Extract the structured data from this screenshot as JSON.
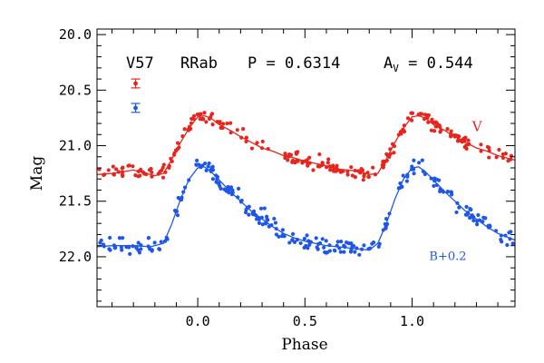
{
  "chart_data": {
    "type": "scatter",
    "xlabel": "Phase",
    "ylabel": "Mag",
    "xlim": [
      -0.47,
      1.48
    ],
    "ylim": [
      22.45,
      19.95
    ],
    "y_inverted": true,
    "xticks": [
      "0.0",
      "0.5",
      "1.0"
    ],
    "yticks": [
      "20.0",
      "20.5",
      "21.0",
      "21.5",
      "22.0"
    ],
    "header": {
      "star": "V57",
      "type": "RRab",
      "period": "P = 0.6314",
      "amp_prefix": "A",
      "amp_sub": "V",
      "amp_value": " = 0.544"
    },
    "series": [
      {
        "name": "V",
        "color": "#e8251d",
        "error_bar": {
          "x": -0.29,
          "y": 20.44,
          "err": 0.04
        },
        "fit": [
          [
            -0.47,
            21.26
          ],
          [
            -0.4,
            21.25
          ],
          [
            -0.3,
            21.22
          ],
          [
            -0.2,
            21.27
          ],
          [
            -0.16,
            21.25
          ],
          [
            -0.12,
            21.12
          ],
          [
            -0.08,
            20.97
          ],
          [
            -0.04,
            20.84
          ],
          [
            0.0,
            20.74
          ],
          [
            0.03,
            20.73
          ],
          [
            0.06,
            20.75
          ],
          [
            0.1,
            20.81
          ],
          [
            0.15,
            20.86
          ],
          [
            0.2,
            20.92
          ],
          [
            0.25,
            20.97
          ],
          [
            0.3,
            21.02
          ],
          [
            0.35,
            21.05
          ],
          [
            0.4,
            21.09
          ],
          [
            0.45,
            21.11
          ],
          [
            0.5,
            21.14
          ],
          [
            0.55,
            21.16
          ],
          [
            0.6,
            21.18
          ],
          [
            0.65,
            21.21
          ],
          [
            0.7,
            21.22
          ],
          [
            0.75,
            21.23
          ],
          [
            0.8,
            21.26
          ],
          [
            0.84,
            21.25
          ],
          [
            0.88,
            21.12
          ],
          [
            0.92,
            20.97
          ],
          [
            0.96,
            20.84
          ],
          [
            1.0,
            20.74
          ],
          [
            1.03,
            20.73
          ],
          [
            1.06,
            20.75
          ],
          [
            1.1,
            20.81
          ],
          [
            1.15,
            20.86
          ],
          [
            1.2,
            20.92
          ],
          [
            1.25,
            20.97
          ],
          [
            1.3,
            21.02
          ],
          [
            1.35,
            21.05
          ],
          [
            1.4,
            21.09
          ],
          [
            1.48,
            21.13
          ]
        ],
        "label": {
          "text": "V",
          "x": 1.28,
          "y": 20.87
        }
      },
      {
        "name": "B+0.2",
        "color": "#1e57e8",
        "error_bar": {
          "x": -0.29,
          "y": 20.66,
          "err": 0.04
        },
        "fit": [
          [
            -0.47,
            21.91
          ],
          [
            -0.4,
            21.9
          ],
          [
            -0.3,
            21.9
          ],
          [
            -0.22,
            21.91
          ],
          [
            -0.16,
            21.88
          ],
          [
            -0.12,
            21.7
          ],
          [
            -0.08,
            21.48
          ],
          [
            -0.04,
            21.3
          ],
          [
            0.0,
            21.2
          ],
          [
            0.03,
            21.19
          ],
          [
            0.06,
            21.23
          ],
          [
            0.1,
            21.31
          ],
          [
            0.15,
            21.41
          ],
          [
            0.2,
            21.5
          ],
          [
            0.25,
            21.59
          ],
          [
            0.3,
            21.66
          ],
          [
            0.35,
            21.73
          ],
          [
            0.4,
            21.79
          ],
          [
            0.45,
            21.83
          ],
          [
            0.5,
            21.86
          ],
          [
            0.55,
            21.88
          ],
          [
            0.6,
            21.9
          ],
          [
            0.65,
            21.91
          ],
          [
            0.7,
            21.92
          ],
          [
            0.75,
            21.93
          ],
          [
            0.8,
            21.94
          ],
          [
            0.84,
            21.88
          ],
          [
            0.88,
            21.7
          ],
          [
            0.92,
            21.48
          ],
          [
            0.96,
            21.3
          ],
          [
            1.0,
            21.2
          ],
          [
            1.03,
            21.19
          ],
          [
            1.06,
            21.23
          ],
          [
            1.1,
            21.31
          ],
          [
            1.15,
            21.41
          ],
          [
            1.2,
            21.5
          ],
          [
            1.25,
            21.59
          ],
          [
            1.3,
            21.66
          ],
          [
            1.35,
            21.73
          ],
          [
            1.4,
            21.79
          ],
          [
            1.48,
            21.85
          ]
        ],
        "label": {
          "text": "B+0.2",
          "x": 1.08,
          "y": 22.03
        }
      }
    ]
  }
}
